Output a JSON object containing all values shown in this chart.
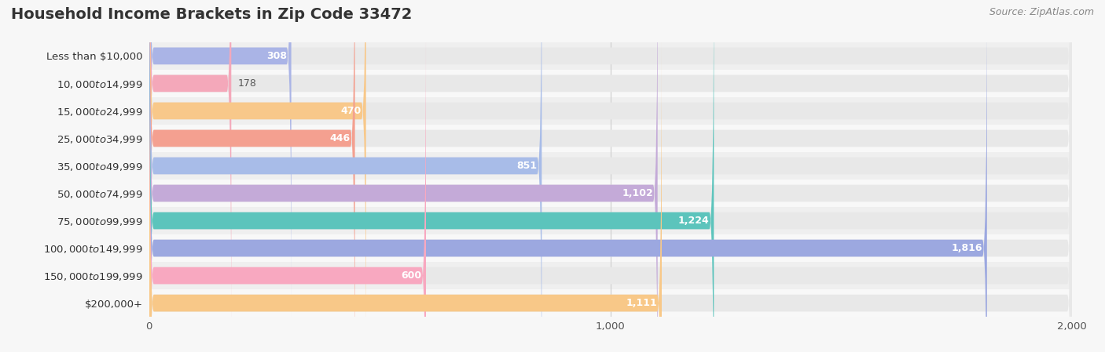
{
  "title": "Household Income Brackets in Zip Code 33472",
  "source": "Source: ZipAtlas.com",
  "categories": [
    "Less than $10,000",
    "$10,000 to $14,999",
    "$15,000 to $24,999",
    "$25,000 to $34,999",
    "$35,000 to $49,999",
    "$50,000 to $74,999",
    "$75,000 to $99,999",
    "$100,000 to $149,999",
    "$150,000 to $199,999",
    "$200,000+"
  ],
  "values": [
    308,
    178,
    470,
    446,
    851,
    1102,
    1224,
    1816,
    600,
    1111
  ],
  "bar_colors": [
    "#aab4e6",
    "#f4a8ba",
    "#f8c88a",
    "#f4a090",
    "#a8bce8",
    "#c4aad8",
    "#5cc4bc",
    "#9ca8e0",
    "#f8a8c0",
    "#f8c888"
  ],
  "background_color": "#f7f7f7",
  "bar_background_color": "#e8e8e8",
  "row_background_even": "#f0f0f0",
  "row_background_odd": "#fafafa",
  "xlim": [
    0,
    2000
  ],
  "xticks": [
    0,
    1000,
    2000
  ],
  "title_fontsize": 14,
  "label_fontsize": 9.5,
  "value_fontsize": 9,
  "source_fontsize": 9,
  "bar_height": 0.62
}
